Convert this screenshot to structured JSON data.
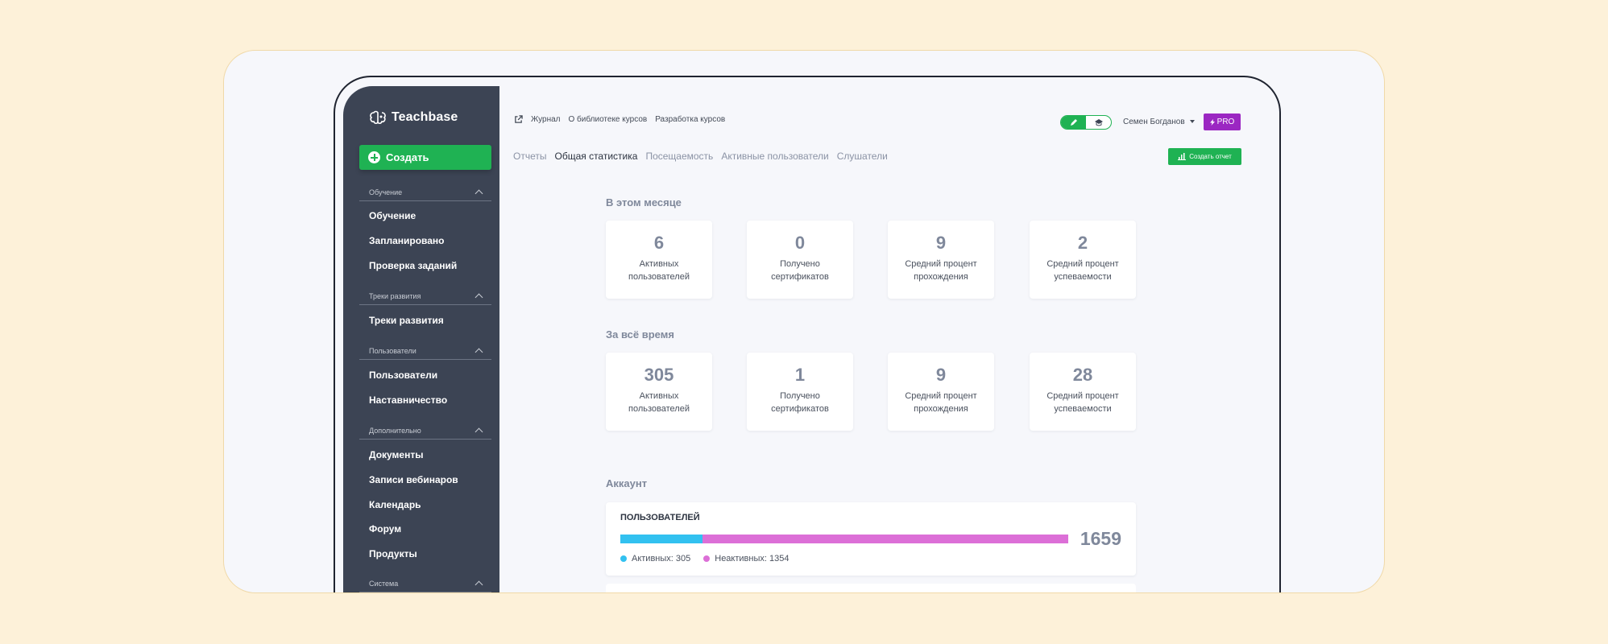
{
  "app": {
    "name": "Teachbase"
  },
  "sidebar": {
    "create_label": "Создать",
    "sections": [
      {
        "title": "Обучение",
        "items": [
          "Обучение",
          "Запланировано",
          "Проверка заданий"
        ]
      },
      {
        "title": "Треки развития",
        "items": [
          "Треки развития"
        ]
      },
      {
        "title": "Пользователи",
        "items": [
          "Пользователи",
          "Наставничество"
        ]
      },
      {
        "title": "Дополнительно",
        "items": [
          "Документы",
          "Записи вебинаров",
          "Календарь",
          "Форум",
          "Продукты"
        ]
      },
      {
        "title": "Система",
        "items": []
      }
    ]
  },
  "topbar": {
    "links": [
      "Журнал",
      "О библиотеке курсов",
      "Разработка курсов"
    ],
    "user_name": "Семен Богданов",
    "pro_label": "PRO"
  },
  "tabs": [
    "Отчеты",
    "Общая статистика",
    "Посещаемость",
    "Активные пользователи",
    "Слушатели"
  ],
  "active_tab": "Общая статистика",
  "report_button": "Создать отчет",
  "this_month": {
    "title": "В этом месяце",
    "stats": [
      {
        "value": "6",
        "label": "Активных\nпользователей"
      },
      {
        "value": "0",
        "label": "Получено\nсертификатов"
      },
      {
        "value": "9",
        "label": "Средний процент\nпрохождения"
      },
      {
        "value": "2",
        "label": "Средний процент\nуспеваемости"
      }
    ]
  },
  "all_time": {
    "title": "За всё время",
    "stats": [
      {
        "value": "305",
        "label": "Активных\nпользователей"
      },
      {
        "value": "1",
        "label": "Получено\nсертификатов"
      },
      {
        "value": "9",
        "label": "Средний процент\nпрохождения"
      },
      {
        "value": "28",
        "label": "Средний процент\nуспеваемости"
      }
    ]
  },
  "account": {
    "title": "Аккаунт",
    "users_title": "ПОЛЬЗОВАТЕЛЕЙ",
    "total": "1659",
    "active": 305,
    "inactive": 1354,
    "active_label": "Активных: 305",
    "inactive_label": "Неактивных: 1354"
  },
  "colors": {
    "accent_green": "#1fb253",
    "pro_purple": "#9b27c2",
    "active_blue": "#32c1f0",
    "inactive_pink": "#dc6fd7",
    "sidebar_bg": "#3c4454"
  }
}
